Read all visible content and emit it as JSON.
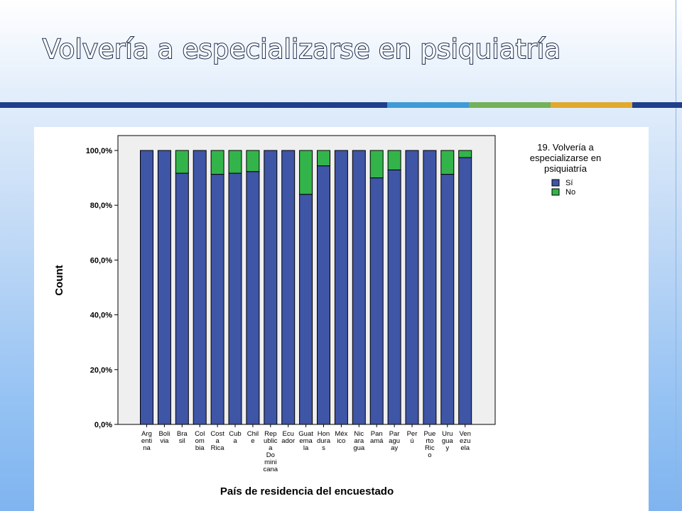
{
  "slide": {
    "title": "Volvería a especializarse en psiquiatría",
    "stripe_colors": [
      "#1f3e8c",
      "#3f9ad7",
      "#74b157",
      "#e1a92e",
      "#1f3e8c"
    ]
  },
  "chart_data": {
    "type": "bar",
    "stacked": true,
    "title": "",
    "xlabel": "País de residencia del encuestado",
    "ylabel": "Count",
    "ylim": [
      0,
      100
    ],
    "yticks": [
      "0,0%",
      "20,0%",
      "40,0%",
      "60,0%",
      "80,0%",
      "100,0%"
    ],
    "grid": false,
    "legend_position": "right",
    "legend_title": [
      "19. Volvería a",
      "especializarse en",
      "psiquiatría"
    ],
    "categories": [
      [
        "Arg",
        "enti",
        "na"
      ],
      [
        "Boli",
        "via"
      ],
      [
        "Bra",
        "sil"
      ],
      [
        "Col",
        "om",
        "bia"
      ],
      [
        "Cost",
        "a",
        "Rica"
      ],
      [
        "Cub",
        "a"
      ],
      [
        "Chil",
        "e"
      ],
      [
        "Rep",
        "ublic",
        "a",
        "Do",
        "mini",
        "cana"
      ],
      [
        "Ecu",
        "ador"
      ],
      [
        "Guat",
        "ema",
        "la"
      ],
      [
        "Hon",
        "dura",
        "s"
      ],
      [
        "Méx",
        "ico"
      ],
      [
        "Nic",
        "ara",
        "gua"
      ],
      [
        "Pan",
        "amá"
      ],
      [
        "Par",
        "agu",
        "ay"
      ],
      [
        "Per",
        "ú"
      ],
      [
        "Pue",
        "rto",
        "Ric",
        "o"
      ],
      [
        "Uru",
        "gua",
        "y"
      ],
      [
        "Ven",
        "ezu",
        "ela"
      ]
    ],
    "series": [
      {
        "name": "Sí",
        "color": "#3f55a6",
        "values": [
          100,
          100,
          91.7,
          100,
          91.3,
          91.7,
          92.3,
          100,
          100,
          84,
          94.4,
          100,
          100,
          90,
          92.9,
          100,
          100,
          91.3,
          97.4
        ]
      },
      {
        "name": "No",
        "color": "#33b44a",
        "values": [
          0,
          0,
          8.3,
          0,
          8.7,
          8.3,
          7.7,
          0,
          0,
          16,
          5.6,
          0,
          0,
          10,
          7.1,
          0,
          0,
          8.7,
          2.6
        ]
      }
    ]
  }
}
